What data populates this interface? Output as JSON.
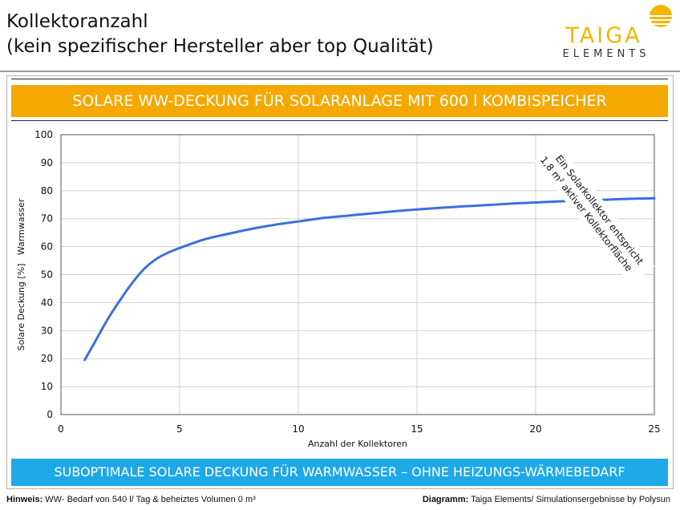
{
  "header": {
    "title_line1": "Kollektoranzahl",
    "title_line2": "(kein spezifischer Hersteller aber top Qualität)"
  },
  "logo": {
    "name": "TAIGA",
    "sub": "ELEMENTS",
    "color": "#f5b500"
  },
  "banner_top": {
    "text": "SOLARE WW-DECKUNG FÜR SOLARANLAGE MIT 600 l KOMBISPEICHER",
    "color": "#f5a800"
  },
  "banner_bottom": {
    "text": "SUBOPTIMALE SOLARE DECKUNG FÜR WARMWASSER – OHNE HEIZUNGS-WÄRMEBEDARF",
    "color": "#1fa8e8"
  },
  "footer": {
    "left_label": "Hinweis:",
    "left_text": " WW- Bedarf von 540 l/ Tag & beheiztes Volumen 0 m³",
    "right_label": "Diagramm:",
    "right_text": " Taiga Elements/ Simulationsergebnisse by Polysun"
  },
  "chart_data": {
    "type": "line",
    "xlabel": "Anzahl der Kollektoren",
    "ylabel": "Solare Deckung [%]   Warmwasser",
    "xlim": [
      0,
      25
    ],
    "ylim": [
      0,
      100
    ],
    "x_ticks": [
      "0",
      "5",
      "10",
      "15",
      "20",
      "25"
    ],
    "y_ticks": [
      "0",
      "10",
      "20",
      "30",
      "40",
      "50",
      "60",
      "70",
      "80",
      "90",
      "100"
    ],
    "grid": true,
    "series": [
      {
        "color": "#3b6fe0",
        "x": [
          1,
          1.5,
          2,
          2.5,
          3,
          3.5,
          4,
          4.5,
          5,
          6,
          7,
          8,
          9,
          10,
          11,
          12,
          13,
          14,
          15,
          16,
          17,
          18,
          19,
          20,
          21,
          22,
          23,
          24,
          25
        ],
        "y": [
          19.5,
          27,
          34.5,
          41,
          47,
          52,
          55.5,
          57.8,
          59.5,
          62.5,
          64.5,
          66.3,
          67.8,
          69,
          70.2,
          71,
          71.8,
          72.6,
          73.3,
          73.9,
          74.4,
          74.9,
          75.4,
          75.8,
          76.2,
          76.5,
          76.8,
          77.1,
          77.3
        ]
      }
    ],
    "annotation": {
      "line1": "Ein Solarkollektor entspricht",
      "line2": "1,8 m² aktiver Kollektorfläche"
    }
  }
}
